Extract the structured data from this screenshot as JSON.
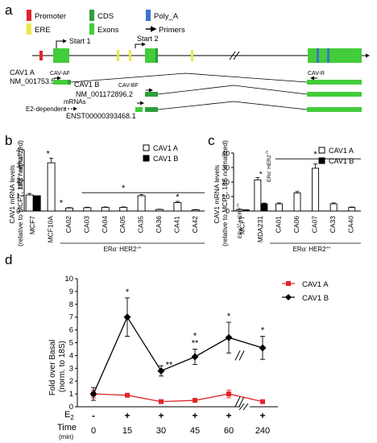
{
  "panels": {
    "a": "a",
    "b": "b",
    "c": "c",
    "d": "d"
  },
  "gene": {
    "legend": [
      "Promoter",
      "CDS",
      "Poly_A",
      "ERE",
      "Exons",
      "Primers"
    ],
    "starts": [
      "Start 1",
      "Start 2"
    ],
    "transcripts": [
      {
        "line1": "CAV1 A",
        "line2": "NM_001753.5"
      },
      {
        "line1": "CAV1 B",
        "line2": "NM_001172896.2"
      },
      {
        "line1": "",
        "line2": "ENST00000393468.1"
      }
    ],
    "primers": [
      "CAV-AF",
      "CAV-BF",
      "CAV-R"
    ],
    "mrna_label": "mRNAs",
    "e2_label": "E2-dependent"
  },
  "colors": {
    "promoter": "#e0262b",
    "cds": "#2e9e3a",
    "polya": "#3b74c7",
    "ere": "#e8e84c",
    "exon": "#43cc3b",
    "red": "#e0262b"
  },
  "chart_data": [
    {
      "type": "bar",
      "panel": "b",
      "ylabel": "CAV1 mRNA levels (relative to MCF7, 18S normalized)",
      "ylim": [
        0,
        4
      ],
      "yticks": [
        0,
        1,
        2,
        3,
        4
      ],
      "categories": [
        "MCF7",
        "MCF10A",
        "CA02",
        "CA03",
        "CA04",
        "CA05",
        "CA35",
        "CA36",
        "CA41",
        "CA42"
      ],
      "series": [
        {
          "name": "CAV1 A",
          "values": [
            1.05,
            3.15,
            0.2,
            0.22,
            0.24,
            0.24,
            1.0,
            0.1,
            0.55,
            0.08
          ],
          "errors": [
            0.1,
            0.3,
            0.03,
            0.03,
            0.03,
            0.03,
            0.08,
            0.02,
            0.08,
            0.02
          ]
        },
        {
          "name": "CAV1 B",
          "values": [
            1.0,
            0,
            0,
            0,
            0,
            0,
            0,
            0,
            0,
            0
          ]
        }
      ],
      "annotations": [
        "ERα++ HER2-/+",
        "ERα- HER2-/+",
        "*"
      ]
    },
    {
      "type": "bar",
      "panel": "c",
      "ylabel": "CAV1 mRNA levels (relative to MCF7, 18S normalized)",
      "ylim": [
        0,
        40
      ],
      "yticks": [
        0,
        10,
        20,
        30,
        40
      ],
      "categories": [
        "MCF7",
        "MDA231",
        "CA01",
        "CA06",
        "CA07",
        "CA33",
        "CA40"
      ],
      "series": [
        {
          "name": "CAV1 A",
          "values": [
            1.0,
            21.5,
            5.0,
            12.5,
            29.5,
            5.0,
            2.5
          ],
          "errors": [
            0.2,
            1.5,
            0.6,
            1.0,
            3.0,
            0.6,
            0.3
          ]
        },
        {
          "name": "CAV1 B",
          "values": [
            0.8,
            5.0,
            0,
            0,
            0,
            0,
            0
          ],
          "errors": [
            0.1,
            0.5,
            0,
            0,
            0,
            0,
            0
          ]
        }
      ],
      "annotations": [
        "ERα++ HER2-/+",
        "ERα- HER2-/+",
        "ERα- HER2++",
        "*",
        "*"
      ]
    },
    {
      "type": "line",
      "panel": "d",
      "ylabel": "Fold over Basal (norm. to 18S)",
      "ylim": [
        0,
        10
      ],
      "yticks": [
        0,
        1,
        2,
        3,
        4,
        5,
        6,
        7,
        8,
        9,
        10
      ],
      "xlabel": "Time (min)",
      "x": [
        "0",
        "15",
        "30",
        "45",
        "60",
        "240"
      ],
      "e2_row": [
        "-",
        "+",
        "+",
        "+",
        "+",
        "+"
      ],
      "e2_label": "E2",
      "series": [
        {
          "name": "CAV1 A",
          "values": [
            1.0,
            0.9,
            0.4,
            0.5,
            1.0,
            0.4
          ],
          "errors": [
            0.3,
            0.1,
            0.1,
            0.1,
            0.3,
            0.1
          ],
          "color": "#e0262b"
        },
        {
          "name": "CAV1 B",
          "values": [
            1.0,
            7.0,
            2.8,
            3.9,
            5.4,
            4.6
          ],
          "errors": [
            0.5,
            1.5,
            0.4,
            0.6,
            1.2,
            0.9
          ],
          "color": "#000000"
        }
      ],
      "annotations": [
        "*",
        "**",
        "*",
        "**",
        "*",
        "*"
      ]
    }
  ]
}
